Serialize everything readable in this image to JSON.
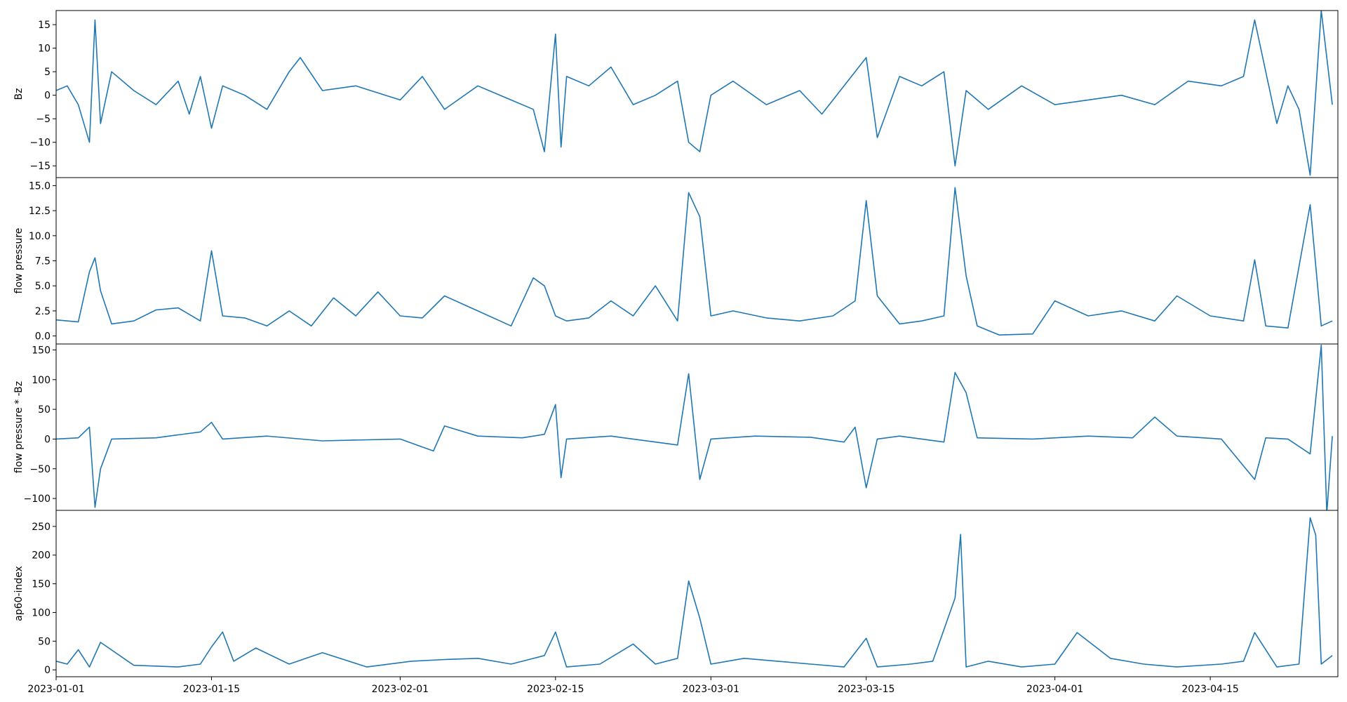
{
  "chart_data": [
    {
      "type": "line",
      "ylabel": "Bz",
      "ylim": [
        -17.5,
        18
      ],
      "yticks": [
        -15,
        -10,
        -5,
        0,
        5,
        10,
        15
      ],
      "ytick_labels": [
        "−15",
        "−10",
        "−5",
        "0",
        "5",
        "10",
        "15"
      ],
      "color": "#1f77b4",
      "x": [
        "2023-01-01",
        "2023-01-02",
        "2023-01-03",
        "2023-01-04",
        "2023-01-04T12",
        "2023-01-05",
        "2023-01-06",
        "2023-01-08",
        "2023-01-10",
        "2023-01-12",
        "2023-01-13",
        "2023-01-14",
        "2023-01-15",
        "2023-01-16",
        "2023-01-18",
        "2023-01-20",
        "2023-01-22",
        "2023-01-23",
        "2023-01-25",
        "2023-01-28",
        "2023-02-01",
        "2023-02-03",
        "2023-02-05",
        "2023-02-08",
        "2023-02-11",
        "2023-02-13",
        "2023-02-14",
        "2023-02-15",
        "2023-02-15T12",
        "2023-02-16",
        "2023-02-18",
        "2023-02-20",
        "2023-02-22",
        "2023-02-24",
        "2023-02-26",
        "2023-02-27",
        "2023-02-28",
        "2023-03-01",
        "2023-03-03",
        "2023-03-06",
        "2023-03-09",
        "2023-03-11",
        "2023-03-13",
        "2023-03-15",
        "2023-03-16",
        "2023-03-18",
        "2023-03-20",
        "2023-03-22",
        "2023-03-23",
        "2023-03-24",
        "2023-03-26",
        "2023-03-29",
        "2023-04-01",
        "2023-04-04",
        "2023-04-07",
        "2023-04-10",
        "2023-04-13",
        "2023-04-16",
        "2023-04-18",
        "2023-04-19",
        "2023-04-21",
        "2023-04-22",
        "2023-04-23",
        "2023-04-24",
        "2023-04-25",
        "2023-04-26"
      ],
      "y": [
        1,
        2,
        -2,
        -10,
        16,
        -6,
        5,
        1,
        -2,
        3,
        -4,
        4,
        -7,
        2,
        0,
        -3,
        5,
        8,
        1,
        2,
        -1,
        4,
        -3,
        2,
        -1,
        -3,
        -12,
        13,
        -11,
        4,
        2,
        6,
        -2,
        0,
        3,
        -10,
        -12,
        0,
        3,
        -2,
        1,
        -4,
        2,
        8,
        -9,
        4,
        2,
        5,
        -15,
        1,
        -3,
        2,
        -2,
        -1,
        0,
        -2,
        3,
        2,
        4,
        16,
        -6,
        2,
        -3,
        -17,
        18,
        -2
      ],
      "xlim": [
        "2023-01-01",
        "2023-04-26T12"
      ],
      "grid": false
    },
    {
      "type": "line",
      "ylabel": "flow pressure",
      "ylim": [
        -0.8,
        15.8
      ],
      "yticks": [
        0,
        2.5,
        5,
        7.5,
        10,
        12.5,
        15
      ],
      "ytick_labels": [
        "0.0",
        "2.5",
        "5.0",
        "7.5",
        "10.0",
        "12.5",
        "15.0"
      ],
      "color": "#1f77b4",
      "x": [
        "2023-01-01",
        "2023-01-03",
        "2023-01-04",
        "2023-01-04T12",
        "2023-01-05",
        "2023-01-06",
        "2023-01-08",
        "2023-01-10",
        "2023-01-12",
        "2023-01-14",
        "2023-01-15",
        "2023-01-16",
        "2023-01-18",
        "2023-01-20",
        "2023-01-22",
        "2023-01-24",
        "2023-01-26",
        "2023-01-28",
        "2023-01-30",
        "2023-02-01",
        "2023-02-03",
        "2023-02-05",
        "2023-02-08",
        "2023-02-11",
        "2023-02-13",
        "2023-02-14",
        "2023-02-15",
        "2023-02-16",
        "2023-02-18",
        "2023-02-20",
        "2023-02-22",
        "2023-02-24",
        "2023-02-26",
        "2023-02-27",
        "2023-02-28",
        "2023-03-01",
        "2023-03-03",
        "2023-03-06",
        "2023-03-09",
        "2023-03-12",
        "2023-03-14",
        "2023-03-15",
        "2023-03-16",
        "2023-03-18",
        "2023-03-20",
        "2023-03-22",
        "2023-03-23",
        "2023-03-24",
        "2023-03-25",
        "2023-03-27",
        "2023-03-30",
        "2023-04-01",
        "2023-04-04",
        "2023-04-07",
        "2023-04-10",
        "2023-04-12",
        "2023-04-15",
        "2023-04-18",
        "2023-04-19",
        "2023-04-20",
        "2023-04-22",
        "2023-04-24",
        "2023-04-25",
        "2023-04-26"
      ],
      "y": [
        1.6,
        1.4,
        6.4,
        7.8,
        4.5,
        1.2,
        1.5,
        2.6,
        2.8,
        1.5,
        8.5,
        2.0,
        1.8,
        1.0,
        2.5,
        1.0,
        3.8,
        2.0,
        4.4,
        2.0,
        1.8,
        4.0,
        2.5,
        1.0,
        5.8,
        5.0,
        2.0,
        1.5,
        1.8,
        3.5,
        2.0,
        5.0,
        1.5,
        14.3,
        11.9,
        2.0,
        2.5,
        1.8,
        1.5,
        2.0,
        3.5,
        13.5,
        4.0,
        1.2,
        1.5,
        2.0,
        14.8,
        6.0,
        1.0,
        0.1,
        0.2,
        3.5,
        2.0,
        2.5,
        1.5,
        4.0,
        2.0,
        1.5,
        7.6,
        1.0,
        0.8,
        13.1,
        1.0,
        1.5
      ],
      "xlim": [
        "2023-01-01",
        "2023-04-26T12"
      ],
      "grid": false
    },
    {
      "type": "line",
      "ylabel": "flow pressure * -Bz",
      "ylim": [
        -120,
        160
      ],
      "yticks": [
        -100,
        -50,
        0,
        50,
        100,
        150
      ],
      "ytick_labels": [
        "−100",
        "−50",
        "0",
        "50",
        "100",
        "150"
      ],
      "color": "#1f77b4",
      "x": [
        "2023-01-01",
        "2023-01-03",
        "2023-01-04",
        "2023-01-04T12",
        "2023-01-05",
        "2023-01-06",
        "2023-01-10",
        "2023-01-14",
        "2023-01-15",
        "2023-01-16",
        "2023-01-20",
        "2023-01-25",
        "2023-02-01",
        "2023-02-04",
        "2023-02-05",
        "2023-02-08",
        "2023-02-12",
        "2023-02-14",
        "2023-02-15",
        "2023-02-15T12",
        "2023-02-16",
        "2023-02-20",
        "2023-02-24",
        "2023-02-26",
        "2023-02-27",
        "2023-02-28",
        "2023-03-01",
        "2023-03-05",
        "2023-03-10",
        "2023-03-13",
        "2023-03-14",
        "2023-03-15",
        "2023-03-16",
        "2023-03-18",
        "2023-03-20",
        "2023-03-22",
        "2023-03-23",
        "2023-03-24",
        "2023-03-25",
        "2023-03-30",
        "2023-04-04",
        "2023-04-08",
        "2023-04-10",
        "2023-04-12",
        "2023-04-16",
        "2023-04-19",
        "2023-04-20",
        "2023-04-22",
        "2023-04-24",
        "2023-04-25",
        "2023-04-25T12",
        "2023-04-26"
      ],
      "y": [
        0,
        2,
        20,
        -115,
        -50,
        0,
        2,
        12,
        28,
        0,
        5,
        -3,
        0,
        -20,
        22,
        5,
        2,
        8,
        58,
        -65,
        0,
        5,
        -5,
        -10,
        110,
        -68,
        0,
        5,
        3,
        -5,
        20,
        -82,
        0,
        5,
        0,
        -5,
        112,
        78,
        2,
        0,
        5,
        2,
        37,
        5,
        0,
        -68,
        2,
        0,
        -25,
        158,
        -125,
        5
      ],
      "xlim": [
        "2023-01-01",
        "2023-04-26T12"
      ],
      "grid": false
    },
    {
      "type": "line",
      "ylabel": "ap60-index",
      "ylim": [
        -12,
        278
      ],
      "yticks": [
        0,
        50,
        100,
        150,
        200,
        250
      ],
      "ytick_labels": [
        "0",
        "50",
        "100",
        "150",
        "200",
        "250"
      ],
      "color": "#1f77b4",
      "x": [
        "2023-01-01",
        "2023-01-02",
        "2023-01-03",
        "2023-01-04",
        "2023-01-05",
        "2023-01-08",
        "2023-01-12",
        "2023-01-14",
        "2023-01-15",
        "2023-01-16",
        "2023-01-17",
        "2023-01-19",
        "2023-01-22",
        "2023-01-25",
        "2023-01-29",
        "2023-02-02",
        "2023-02-05",
        "2023-02-08",
        "2023-02-11",
        "2023-02-14",
        "2023-02-15",
        "2023-02-16",
        "2023-02-19",
        "2023-02-22",
        "2023-02-24",
        "2023-02-26",
        "2023-02-27",
        "2023-02-28",
        "2023-03-01",
        "2023-03-04",
        "2023-03-07",
        "2023-03-10",
        "2023-03-13",
        "2023-03-15",
        "2023-03-16",
        "2023-03-19",
        "2023-03-21",
        "2023-03-23",
        "2023-03-23T12",
        "2023-03-24",
        "2023-03-26",
        "2023-03-29",
        "2023-04-01",
        "2023-04-03",
        "2023-04-06",
        "2023-04-09",
        "2023-04-12",
        "2023-04-16",
        "2023-04-18",
        "2023-04-19",
        "2023-04-21",
        "2023-04-23",
        "2023-04-24",
        "2023-04-24T12",
        "2023-04-25",
        "2023-04-26"
      ],
      "y": [
        15,
        10,
        35,
        5,
        48,
        8,
        5,
        10,
        40,
        66,
        15,
        38,
        10,
        30,
        5,
        15,
        18,
        20,
        10,
        25,
        66,
        5,
        10,
        45,
        10,
        20,
        155,
        90,
        10,
        20,
        15,
        10,
        5,
        55,
        5,
        10,
        15,
        125,
        236,
        5,
        15,
        5,
        10,
        65,
        20,
        10,
        5,
        10,
        15,
        65,
        5,
        10,
        265,
        235,
        10,
        25
      ],
      "xlim": [
        "2023-01-01",
        "2023-04-26T12"
      ],
      "grid": false
    }
  ],
  "x_ticks": [
    "2023-01-01",
    "2023-01-15",
    "2023-02-01",
    "2023-02-15",
    "2023-03-01",
    "2023-03-15",
    "2023-04-01",
    "2023-04-15"
  ]
}
